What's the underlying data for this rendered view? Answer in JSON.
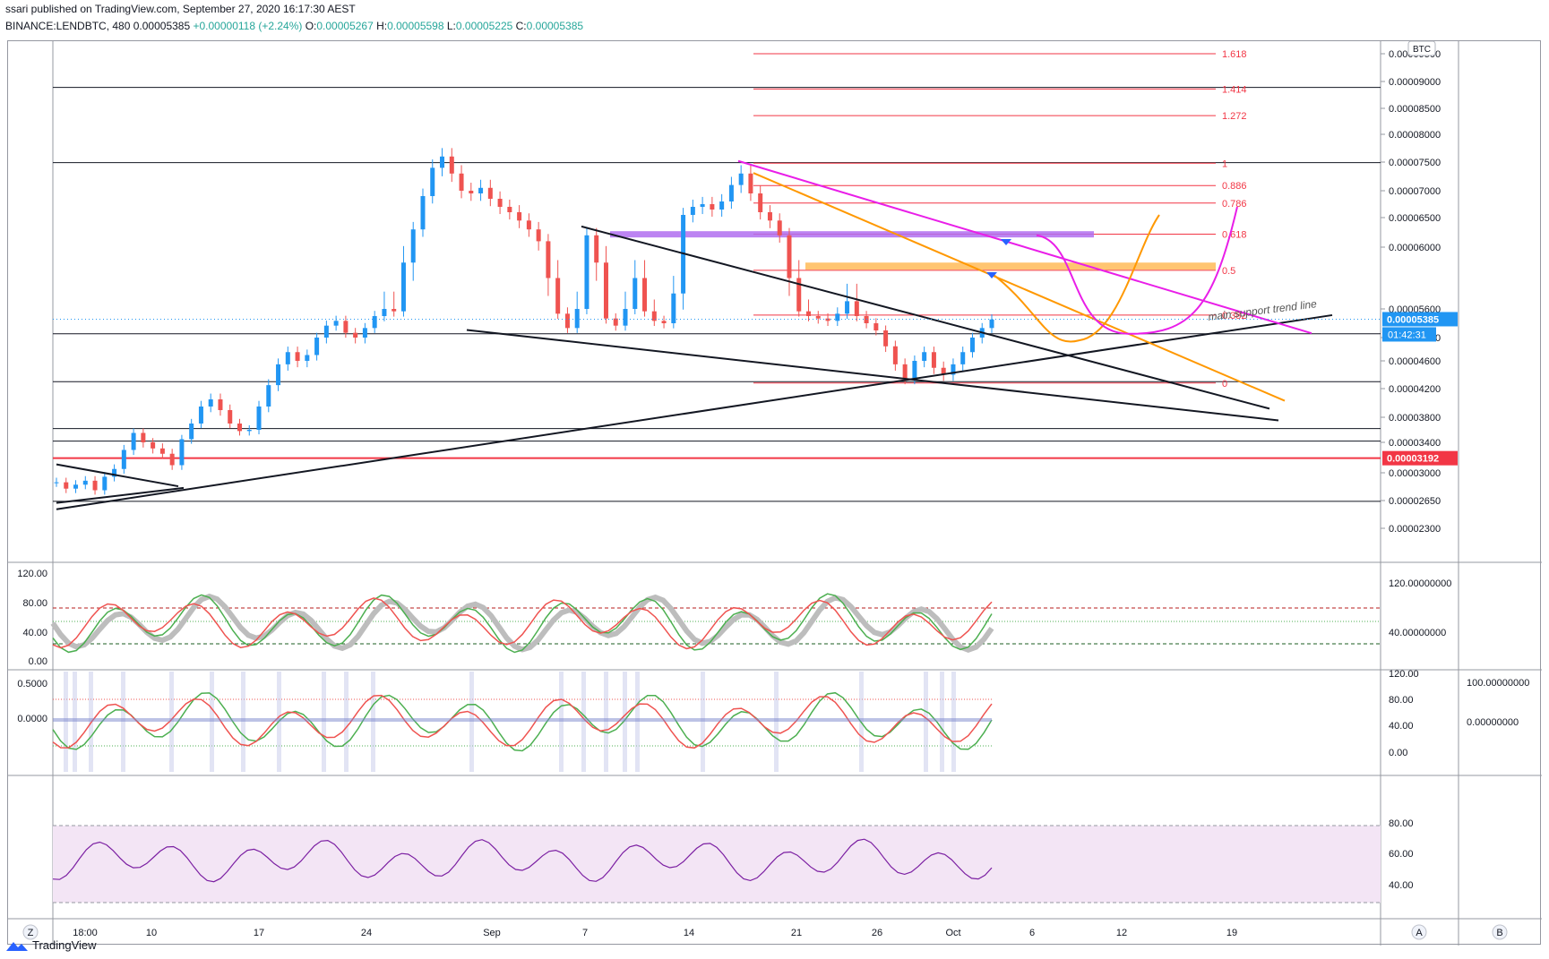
{
  "header": {
    "line1": "ssari published on TradingView.com, September 27, 2020 16:17:30 AEST",
    "symbol": "BINANCE:LENDBTC, 480",
    "last": "0.00005385",
    "change": "+0.00000118 (+2.24%)",
    "o_label": "O:",
    "o_val": "0.00005267",
    "h_label": "H:",
    "h_val": "0.00005598",
    "l_label": "L:",
    "l_val": "0.00005225",
    "c_label": "C:",
    "c_val": "0.00005385"
  },
  "footer": {
    "brand": "TradingView"
  },
  "colors": {
    "up": "#2196f3",
    "down": "#ef5350",
    "fib": "#f23645",
    "magenta": "#e91ee8",
    "orange": "#ff9800",
    "purple_zone": "#b06ef0",
    "stoch_green": "#4caf50",
    "stoch_red": "#ef5350",
    "rsi_line": "#7b1fa2",
    "rsi_band": "#f3e5f5"
  },
  "chart_data": [
    {
      "type": "candlestick",
      "currency_badge": "BTC",
      "price_scale": [
        "0.00009500",
        "0.00009000",
        "0.00008500",
        "0.00008000",
        "0.00007500",
        "0.00007000",
        "0.00006500",
        "0.00006000",
        "0.00005600",
        "0.00005000",
        "0.00004600",
        "0.00004200",
        "0.00003800",
        "0.00003400",
        "0.00003000",
        "0.00002650",
        "0.00002300"
      ],
      "x_labels": [
        "18:00",
        "10",
        "17",
        "24",
        "Sep",
        "7",
        "14",
        "21",
        "26",
        "Oct",
        "6",
        "12",
        "19"
      ],
      "last_price": "0.00005385",
      "countdown": "01:42:31",
      "alert_price": "0.00003192",
      "fib_levels": [
        {
          "label": "1.618",
          "price": 9.55e-05
        },
        {
          "label": "1.414",
          "price": 8.86e-05
        },
        {
          "label": "1.272",
          "price": 8.36e-05
        },
        {
          "label": "1",
          "price": 7.48e-05
        },
        {
          "label": "0.886",
          "price": 7.09e-05
        },
        {
          "label": "0.786",
          "price": 6.77e-05
        },
        {
          "label": "0.618",
          "price": 6.22e-05
        },
        {
          "label": "0.5",
          "price": 5.85e-05
        },
        {
          "label": "0.382",
          "price": 5.47e-05
        },
        {
          "label": "0",
          "price": 4.28e-05
        }
      ],
      "horizontal_levels": [
        8.89e-05,
        7.49e-05,
        5.08e-05,
        4.3e-05,
        3.62e-05,
        3.42e-05,
        2.64e-05
      ],
      "annotation": "main support trend line"
    },
    {
      "type": "line",
      "name": "stochastic",
      "y_left": [
        "120.00",
        "80.00",
        "40.00",
        "0.00"
      ],
      "y_right": [
        "120.00000000",
        "40.00000000"
      ]
    },
    {
      "type": "line",
      "name": "stoch-rsi",
      "y_left": [
        "0.5000",
        "0.0000"
      ],
      "y_mid": [
        "120.00",
        "80.00",
        "40.00",
        "0.00"
      ],
      "y_right": [
        "100.00000000",
        "0.00000000"
      ]
    },
    {
      "type": "line",
      "name": "rsi",
      "y_labels": [
        "80.00",
        "60.00",
        "40.00"
      ]
    }
  ],
  "bottom_buttons": {
    "z": "Z",
    "a": "A",
    "b": "B"
  }
}
